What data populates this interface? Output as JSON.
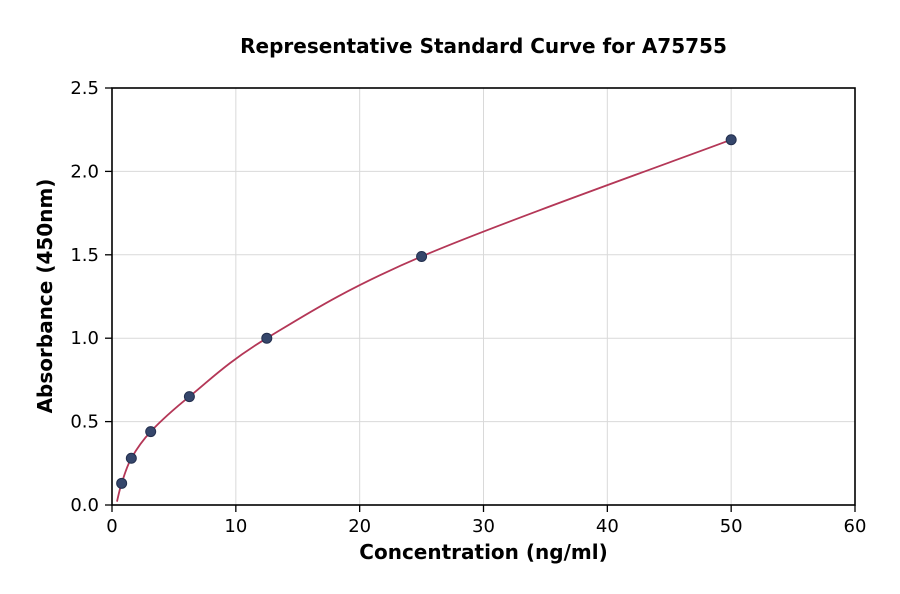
{
  "figure": {
    "background": "#ffffff"
  },
  "chart_data": {
    "type": "scatter",
    "title": "Representative Standard Curve for A75755",
    "xlabel": "Concentration (ng/ml)",
    "ylabel": "Absorbance (450nm)",
    "x": [
      0.78,
      1.56,
      3.125,
      6.25,
      12.5,
      25,
      50
    ],
    "y": [
      0.13,
      0.28,
      0.44,
      0.65,
      1.0,
      1.49,
      2.19
    ],
    "curve_start": [
      0.4,
      0.02
    ],
    "xlim": [
      0,
      60
    ],
    "ylim": [
      0,
      2.5
    ],
    "xticks": [
      0,
      10,
      20,
      30,
      40,
      50,
      60
    ],
    "xtick_labels": [
      "0",
      "10",
      "20",
      "30",
      "40",
      "50",
      "60"
    ],
    "yticks": [
      0,
      0.5,
      1.0,
      1.5,
      2.0,
      2.5
    ],
    "ytick_labels": [
      "0.0",
      "0.5",
      "1.0",
      "1.5",
      "2.0",
      "2.5"
    ],
    "grid": true,
    "legend": "none",
    "grid_color": "#d9d9d9",
    "line_color": "#b43757",
    "marker_color": "#35466b",
    "marker_edge_color": "#232f4e",
    "axis_color": "#000000"
  }
}
